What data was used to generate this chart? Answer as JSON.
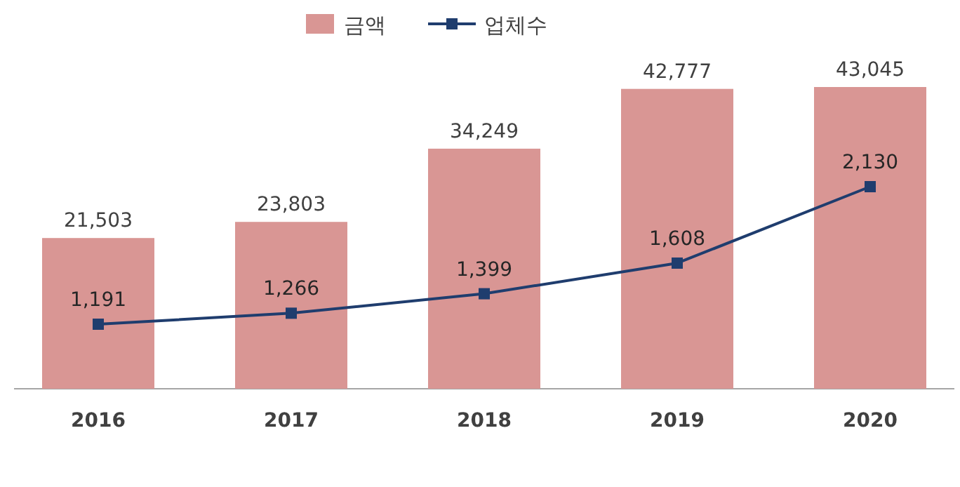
{
  "chart_data": {
    "type": "bar",
    "categories": [
      "2016",
      "2017",
      "2018",
      "2019",
      "2020"
    ],
    "series": [
      {
        "name": "금액",
        "color": "#d99694",
        "values": [
          21503,
          23803,
          34249,
          42777,
          43045
        ],
        "value_labels": [
          "21,503",
          "23,803",
          "34,249",
          "42,777",
          "43,045"
        ]
      },
      {
        "name": "업체수",
        "type": "line",
        "axis": "y2",
        "color": "#1f3d6e",
        "values": [
          1191,
          1266,
          1399,
          1608,
          2130
        ],
        "value_labels": [
          "1,191",
          "1,266",
          "1,399",
          "1,608",
          "2,130"
        ]
      }
    ],
    "legend": "top",
    "marker": "square"
  }
}
